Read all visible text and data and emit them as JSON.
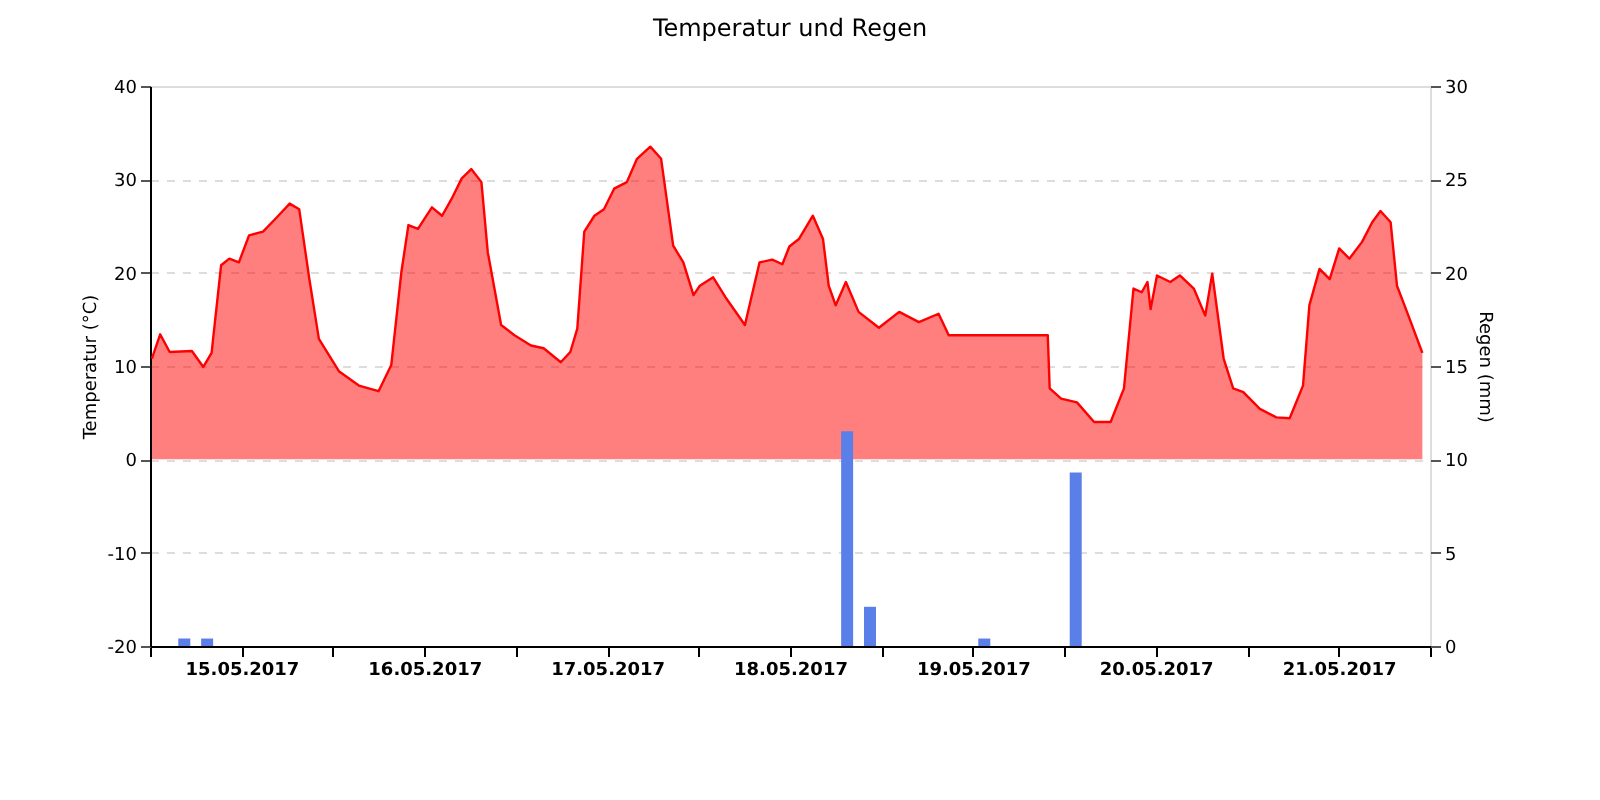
{
  "chart_data": {
    "type": "area",
    "title": "Temperatur und Regen",
    "ylabel": "Temperatur (°C)",
    "y2label": "Regen (mm)",
    "xlim": [
      "2017-05-15T00:00",
      "2017-05-22T00:00"
    ],
    "xticks": [
      {
        "value": "2017-05-15T00:00",
        "label": null
      },
      {
        "value": "2017-05-15T12:00",
        "label": "15.05.2017"
      },
      {
        "value": "2017-05-16T00:00",
        "label": null
      },
      {
        "value": "2017-05-16T12:00",
        "label": "16.05.2017"
      },
      {
        "value": "2017-05-17T00:00",
        "label": null
      },
      {
        "value": "2017-05-17T12:00",
        "label": "17.05.2017"
      },
      {
        "value": "2017-05-18T00:00",
        "label": null
      },
      {
        "value": "2017-05-18T12:00",
        "label": "18.05.2017"
      },
      {
        "value": "2017-05-19T00:00",
        "label": null
      },
      {
        "value": "2017-05-19T12:00",
        "label": "19.05.2017"
      },
      {
        "value": "2017-05-20T00:00",
        "label": null
      },
      {
        "value": "2017-05-20T12:00",
        "label": "20.05.2017"
      },
      {
        "value": "2017-05-21T00:00",
        "label": null
      },
      {
        "value": "2017-05-21T12:00",
        "label": "21.05.2017"
      },
      {
        "value": "2017-05-22T00:00",
        "label": null
      }
    ],
    "ylim": [
      -20,
      40
    ],
    "yticks": [
      -20,
      -10,
      0,
      10,
      20,
      30,
      40
    ],
    "y2lim": [
      0,
      30
    ],
    "y2ticks": [
      0,
      5,
      10,
      15,
      20,
      25,
      30
    ],
    "grid": "y",
    "series": [
      {
        "color": "#ff0000",
        "x": [
          "2017-05-15T00:15",
          "2017-05-15T01:20",
          "2017-05-15T02:35",
          "2017-05-15T05:30",
          "2017-05-15T07:00",
          "2017-05-15T08:05",
          "2017-05-15T09:20",
          "2017-05-15T10:25",
          "2017-05-15T11:40",
          "2017-05-15T13:00",
          "2017-05-15T14:50",
          "2017-05-15T16:30",
          "2017-05-15T18:20",
          "2017-05-15T19:35",
          "2017-05-15T20:55",
          "2017-05-15T22:10",
          "2017-05-16T00:50",
          "2017-05-16T03:25",
          "2017-05-16T06:00",
          "2017-05-16T07:40",
          "2017-05-16T09:00",
          "2017-05-16T09:55",
          "2017-05-16T11:10",
          "2017-05-16T13:00",
          "2017-05-16T14:20",
          "2017-05-16T15:35",
          "2017-05-16T16:55",
          "2017-05-16T18:10",
          "2017-05-16T19:30",
          "2017-05-16T20:20",
          "2017-05-16T22:05",
          "2017-05-16T23:50",
          "2017-05-17T02:00",
          "2017-05-17T03:40",
          "2017-05-17T05:55",
          "2017-05-17T07:10",
          "2017-05-17T08:05",
          "2017-05-17T09:00",
          "2017-05-17T10:20",
          "2017-05-17T11:35",
          "2017-05-17T12:55",
          "2017-05-17T14:35",
          "2017-05-17T15:55",
          "2017-05-17T17:40",
          "2017-05-17T19:05",
          "2017-05-17T20:40",
          "2017-05-17T22:00",
          "2017-05-17T23:20",
          "2017-05-18T00:10",
          "2017-05-18T01:55",
          "2017-05-18T03:40",
          "2017-05-18T06:05",
          "2017-05-18T08:00",
          "2017-05-18T09:40",
          "2017-05-18T11:00",
          "2017-05-18T11:55",
          "2017-05-18T13:10",
          "2017-05-18T15:00",
          "2017-05-18T16:20",
          "2017-05-18T17:05",
          "2017-05-18T18:00",
          "2017-05-18T19:20",
          "2017-05-18T21:00",
          "2017-05-18T23:40",
          "2017-05-19T02:20",
          "2017-05-19T04:55",
          "2017-05-19T07:30",
          "2017-05-19T08:50",
          "2017-05-19T16:10",
          "2017-05-19T21:50",
          "2017-05-19T22:05",
          "2017-05-19T23:35",
          "2017-05-20T01:40",
          "2017-05-20T03:55",
          "2017-05-20T06:05",
          "2017-05-20T07:50",
          "2017-05-20T09:05",
          "2017-05-20T10:10",
          "2017-05-20T10:55",
          "2017-05-20T11:20",
          "2017-05-20T12:10",
          "2017-05-20T13:55",
          "2017-05-20T15:10",
          "2017-05-20T17:00",
          "2017-05-20T18:30",
          "2017-05-20T19:25",
          "2017-05-20T20:55",
          "2017-05-20T22:10",
          "2017-05-20T23:30",
          "2017-05-21T01:40",
          "2017-05-21T03:50",
          "2017-05-21T05:35",
          "2017-05-21T07:20",
          "2017-05-21T08:10",
          "2017-05-21T09:30",
          "2017-05-21T10:50",
          "2017-05-21T12:05",
          "2017-05-21T13:25",
          "2017-05-21T15:05",
          "2017-05-21T16:25",
          "2017-05-21T17:30",
          "2017-05-21T18:50",
          "2017-05-21T19:40",
          "2017-05-21T21:10",
          "2017-05-21T23:00"
        ],
        "values": [
          10.8,
          13.4,
          11.5,
          11.6,
          9.9,
          11.4,
          20.8,
          21.5,
          21.1,
          24.0,
          24.4,
          25.8,
          27.4,
          26.8,
          19.3,
          12.9,
          9.4,
          7.9,
          7.3,
          10.1,
          20.1,
          25.1,
          24.7,
          27.0,
          26.1,
          27.9,
          30.1,
          31.1,
          29.7,
          22.2,
          14.4,
          13.3,
          12.2,
          11.9,
          10.4,
          11.5,
          14.0,
          24.4,
          26.1,
          26.8,
          29.0,
          29.7,
          32.2,
          33.5,
          32.2,
          22.9,
          21.1,
          17.6,
          18.6,
          19.5,
          17.2,
          14.4,
          21.1,
          21.4,
          20.9,
          22.8,
          23.6,
          26.1,
          23.6,
          18.6,
          16.5,
          19.0,
          15.8,
          14.1,
          15.8,
          14.7,
          15.6,
          13.3,
          13.3,
          13.3,
          7.6,
          6.5,
          6.1,
          4.0,
          4.0,
          7.6,
          18.3,
          17.9,
          19.0,
          16.1,
          19.7,
          19.0,
          19.7,
          18.3,
          15.4,
          19.9,
          10.8,
          7.6,
          7.2,
          5.4,
          4.5,
          4.4,
          7.9,
          16.5,
          20.4,
          19.3,
          22.6,
          21.5,
          23.3,
          25.4,
          26.6,
          25.4,
          18.6,
          15.4,
          11.4
        ]
      },
      {
        "type": "bar",
        "axis": "y2",
        "color": "#5b7fe8",
        "x": [
          "2017-05-15T04:30",
          "2017-05-15T07:30",
          "2017-05-18T19:30",
          "2017-05-18T22:30",
          "2017-05-19T13:30",
          "2017-05-20T01:30"
        ],
        "values": [
          0.4,
          0.4,
          11.5,
          2.1,
          0.4,
          9.3
        ]
      }
    ]
  }
}
